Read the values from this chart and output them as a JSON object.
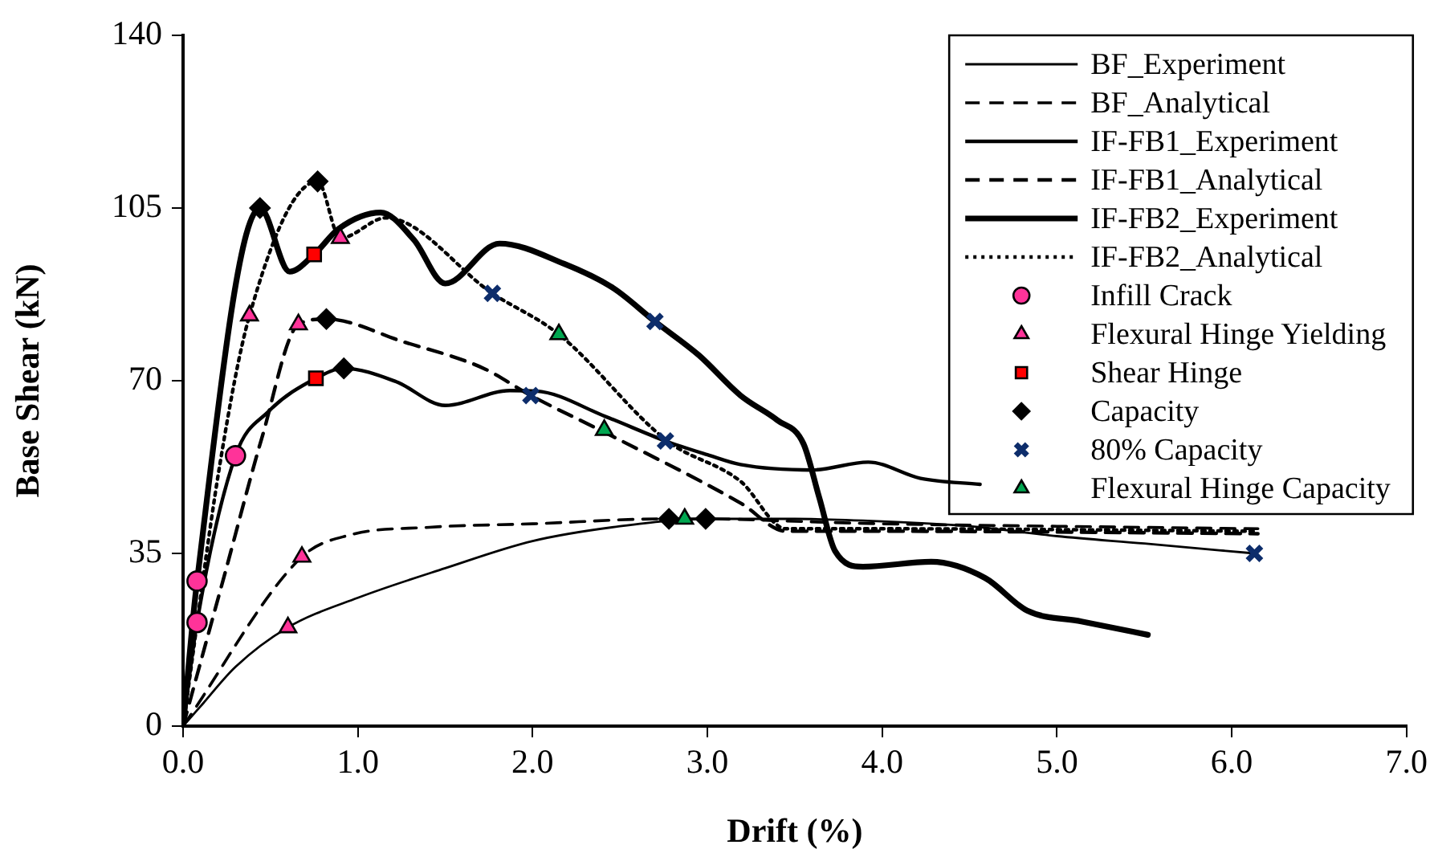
{
  "chart_data": {
    "type": "line",
    "xlabel": "Drift (%)",
    "ylabel": "Base Shear (kN)",
    "xlim": [
      0,
      7
    ],
    "xticks": [
      {
        "value": 0,
        "label": "0.0"
      },
      {
        "value": 1,
        "label": "1.0"
      },
      {
        "value": 2,
        "label": "2.0"
      },
      {
        "value": 3,
        "label": "3.0"
      },
      {
        "value": 4,
        "label": "4.0"
      },
      {
        "value": 5,
        "label": "5.0"
      },
      {
        "value": 6,
        "label": "6.0"
      },
      {
        "value": 7,
        "label": "7.0"
      }
    ],
    "ylim": [
      0,
      140
    ],
    "yticks": [
      0,
      35,
      70,
      105,
      140
    ],
    "grid": false,
    "legend": "top right",
    "series": [
      {
        "name": "BF_Experiment",
        "line_style": "solid",
        "marker": "none",
        "color": "#000000",
        "x": [
          0,
          0.1,
          0.3,
          0.6,
          1.0,
          1.5,
          2.0,
          2.5,
          3.0,
          3.5,
          4.0,
          4.5,
          5.0,
          5.5,
          6.13
        ],
        "values": [
          0,
          4,
          12,
          20,
          26,
          32,
          37.5,
          40.5,
          42,
          42,
          41.5,
          40.5,
          38.5,
          37,
          35
        ]
      },
      {
        "name": "BF_Analytical",
        "line_style": "dashed",
        "marker": "none",
        "color": "#000000",
        "x": [
          0,
          0.68,
          0.95,
          1.41,
          2.0,
          2.76,
          3.0,
          3.5,
          4.0,
          5.0,
          6.15
        ],
        "values": [
          0,
          34.3,
          38.7,
          40.3,
          41,
          42,
          42,
          41.5,
          41,
          40.5,
          40
        ]
      },
      {
        "name": "IF-FB1_Experiment",
        "line_style": "solid",
        "marker": "none",
        "color": "#000000",
        "x": [
          0,
          0.08,
          0.3,
          0.49,
          0.76,
          0.92,
          1.22,
          1.5,
          1.87,
          2.02,
          2.42,
          2.76,
          3.0,
          3.19,
          3.6,
          3.92,
          4.22,
          4.56
        ],
        "values": [
          0,
          21,
          54.8,
          63.8,
          70.5,
          72.5,
          69.8,
          65,
          68,
          67.9,
          62.7,
          57.8,
          55,
          53,
          51.9,
          53.5,
          50.2,
          49
        ]
      },
      {
        "name": "IF-FB1_Analytical",
        "line_style": "dashed",
        "marker": "none",
        "color": "#000000",
        "x": [
          0,
          0.24,
          0.45,
          0.66,
          0.82,
          1.26,
          1.72,
          1.99,
          2.42,
          3.19,
          3.45,
          4.0,
          6.15
        ],
        "values": [
          0,
          31,
          58.3,
          81.4,
          82.5,
          77.9,
          72.5,
          67,
          59.4,
          45.2,
          39.5,
          39.5,
          39
        ]
      },
      {
        "name": "IF-FB2_Experiment",
        "line_style": "solid",
        "marker": "none",
        "color": "#000000",
        "x": [
          0,
          0.08,
          0.44,
          0.61,
          0.75,
          0.89,
          1.13,
          1.32,
          1.5,
          1.81,
          2.18,
          2.46,
          2.7,
          2.95,
          3.19,
          3.4,
          3.55,
          3.64,
          3.73,
          3.89,
          4.28,
          4.59,
          4.83,
          5.14,
          5.52
        ],
        "values": [
          0,
          29.4,
          105,
          92.1,
          95.6,
          100.8,
          104.1,
          98.6,
          89.7,
          97.8,
          93.7,
          88.8,
          82,
          75.2,
          67,
          62,
          57.2,
          46.3,
          35.5,
          32.3,
          33.3,
          30,
          23.4,
          21.2,
          18.5
        ]
      },
      {
        "name": "IF-FB2_Analytical",
        "line_style": "dotted",
        "marker": "none",
        "color": "#000000",
        "x": [
          0,
          0.21,
          0.38,
          0.77,
          0.9,
          1.16,
          1.77,
          2.15,
          2.77,
          3.19,
          3.45,
          4.0,
          6.15
        ],
        "values": [
          0,
          52.9,
          83.2,
          110.4,
          98.9,
          103,
          87.7,
          79.4,
          57.8,
          49.6,
          40,
          40,
          39.5
        ]
      },
      {
        "name": "Infill Crack",
        "type": "scatter",
        "marker": "circle",
        "color": "#ff3399",
        "x": [
          0.08,
          0.08,
          0.3
        ],
        "values": [
          21,
          29.4,
          54.8
        ]
      },
      {
        "name": "Flexural Hinge Yielding",
        "type": "scatter",
        "marker": "triangle",
        "color": "#ff3399",
        "x": [
          0.6,
          0.68,
          0.38,
          0.66,
          0.9
        ],
        "values": [
          20,
          34.3,
          83.2,
          81.4,
          98.9
        ]
      },
      {
        "name": "Shear Hinge",
        "type": "scatter",
        "marker": "square",
        "color": "#ff0000",
        "x": [
          0.75,
          0.76
        ],
        "values": [
          95.6,
          70.5
        ]
      },
      {
        "name": "Capacity",
        "type": "scatter",
        "marker": "diamond",
        "color": "#000000",
        "x": [
          0.44,
          0.77,
          0.82,
          0.92,
          2.78,
          2.99
        ],
        "values": [
          105,
          110.4,
          82.5,
          72.5,
          42,
          42
        ]
      },
      {
        "name": "80% Capacity",
        "type": "scatter",
        "marker": "cross",
        "color": "#0d2d6b",
        "x": [
          1.77,
          2.7,
          1.99,
          2.76,
          6.13
        ],
        "values": [
          87.7,
          82,
          67,
          57.8,
          35
        ]
      },
      {
        "name": "Flexural Hinge Capacity",
        "type": "scatter",
        "marker": "triangle",
        "color": "#00a650",
        "x": [
          2.15,
          2.41,
          2.87
        ],
        "values": [
          79.4,
          60,
          42
        ]
      }
    ]
  }
}
